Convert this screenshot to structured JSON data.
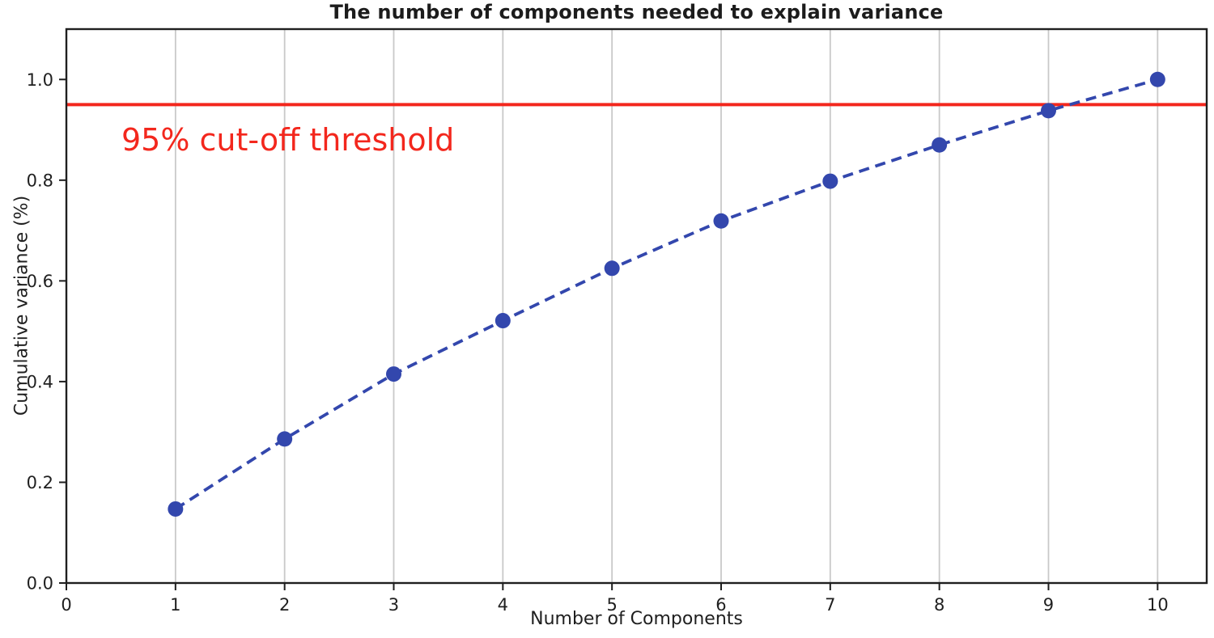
{
  "chart_data": {
    "type": "line",
    "title": "The number of components needed to explain variance",
    "xlabel": "Number of Components",
    "ylabel": "Cumulative variance (%)",
    "x": [
      1,
      2,
      3,
      4,
      5,
      6,
      7,
      8,
      9,
      10
    ],
    "y": [
      0.147,
      0.286,
      0.415,
      0.521,
      0.625,
      0.719,
      0.798,
      0.87,
      0.938,
      1.0
    ],
    "series_name": "Cumulative explained variance",
    "xlim": [
      0,
      10.45
    ],
    "ylim": [
      0,
      1.1
    ],
    "xticks": [
      0,
      1,
      2,
      3,
      4,
      5,
      6,
      7,
      8,
      9,
      10
    ],
    "xtick_labels": [
      "0",
      "1",
      "2",
      "3",
      "4",
      "5",
      "6",
      "7",
      "8",
      "9",
      "10"
    ],
    "yticks": [
      0.0,
      0.2,
      0.4,
      0.6,
      0.8,
      1.0
    ],
    "ytick_labels": [
      "0.0",
      "0.2",
      "0.4",
      "0.6",
      "0.8",
      "1.0"
    ],
    "grid": {
      "vertical": true,
      "horizontal": false,
      "color": "#c9c9c9"
    },
    "line": {
      "color": "#3347ad",
      "style": "dashed",
      "marker": "circle"
    },
    "threshold": {
      "value": 0.95,
      "label": "95% cut-off threshold",
      "color": "#f3271d"
    },
    "legend": "none",
    "colors": {
      "spine": "#1f1f1f",
      "background": "#ffffff"
    }
  }
}
